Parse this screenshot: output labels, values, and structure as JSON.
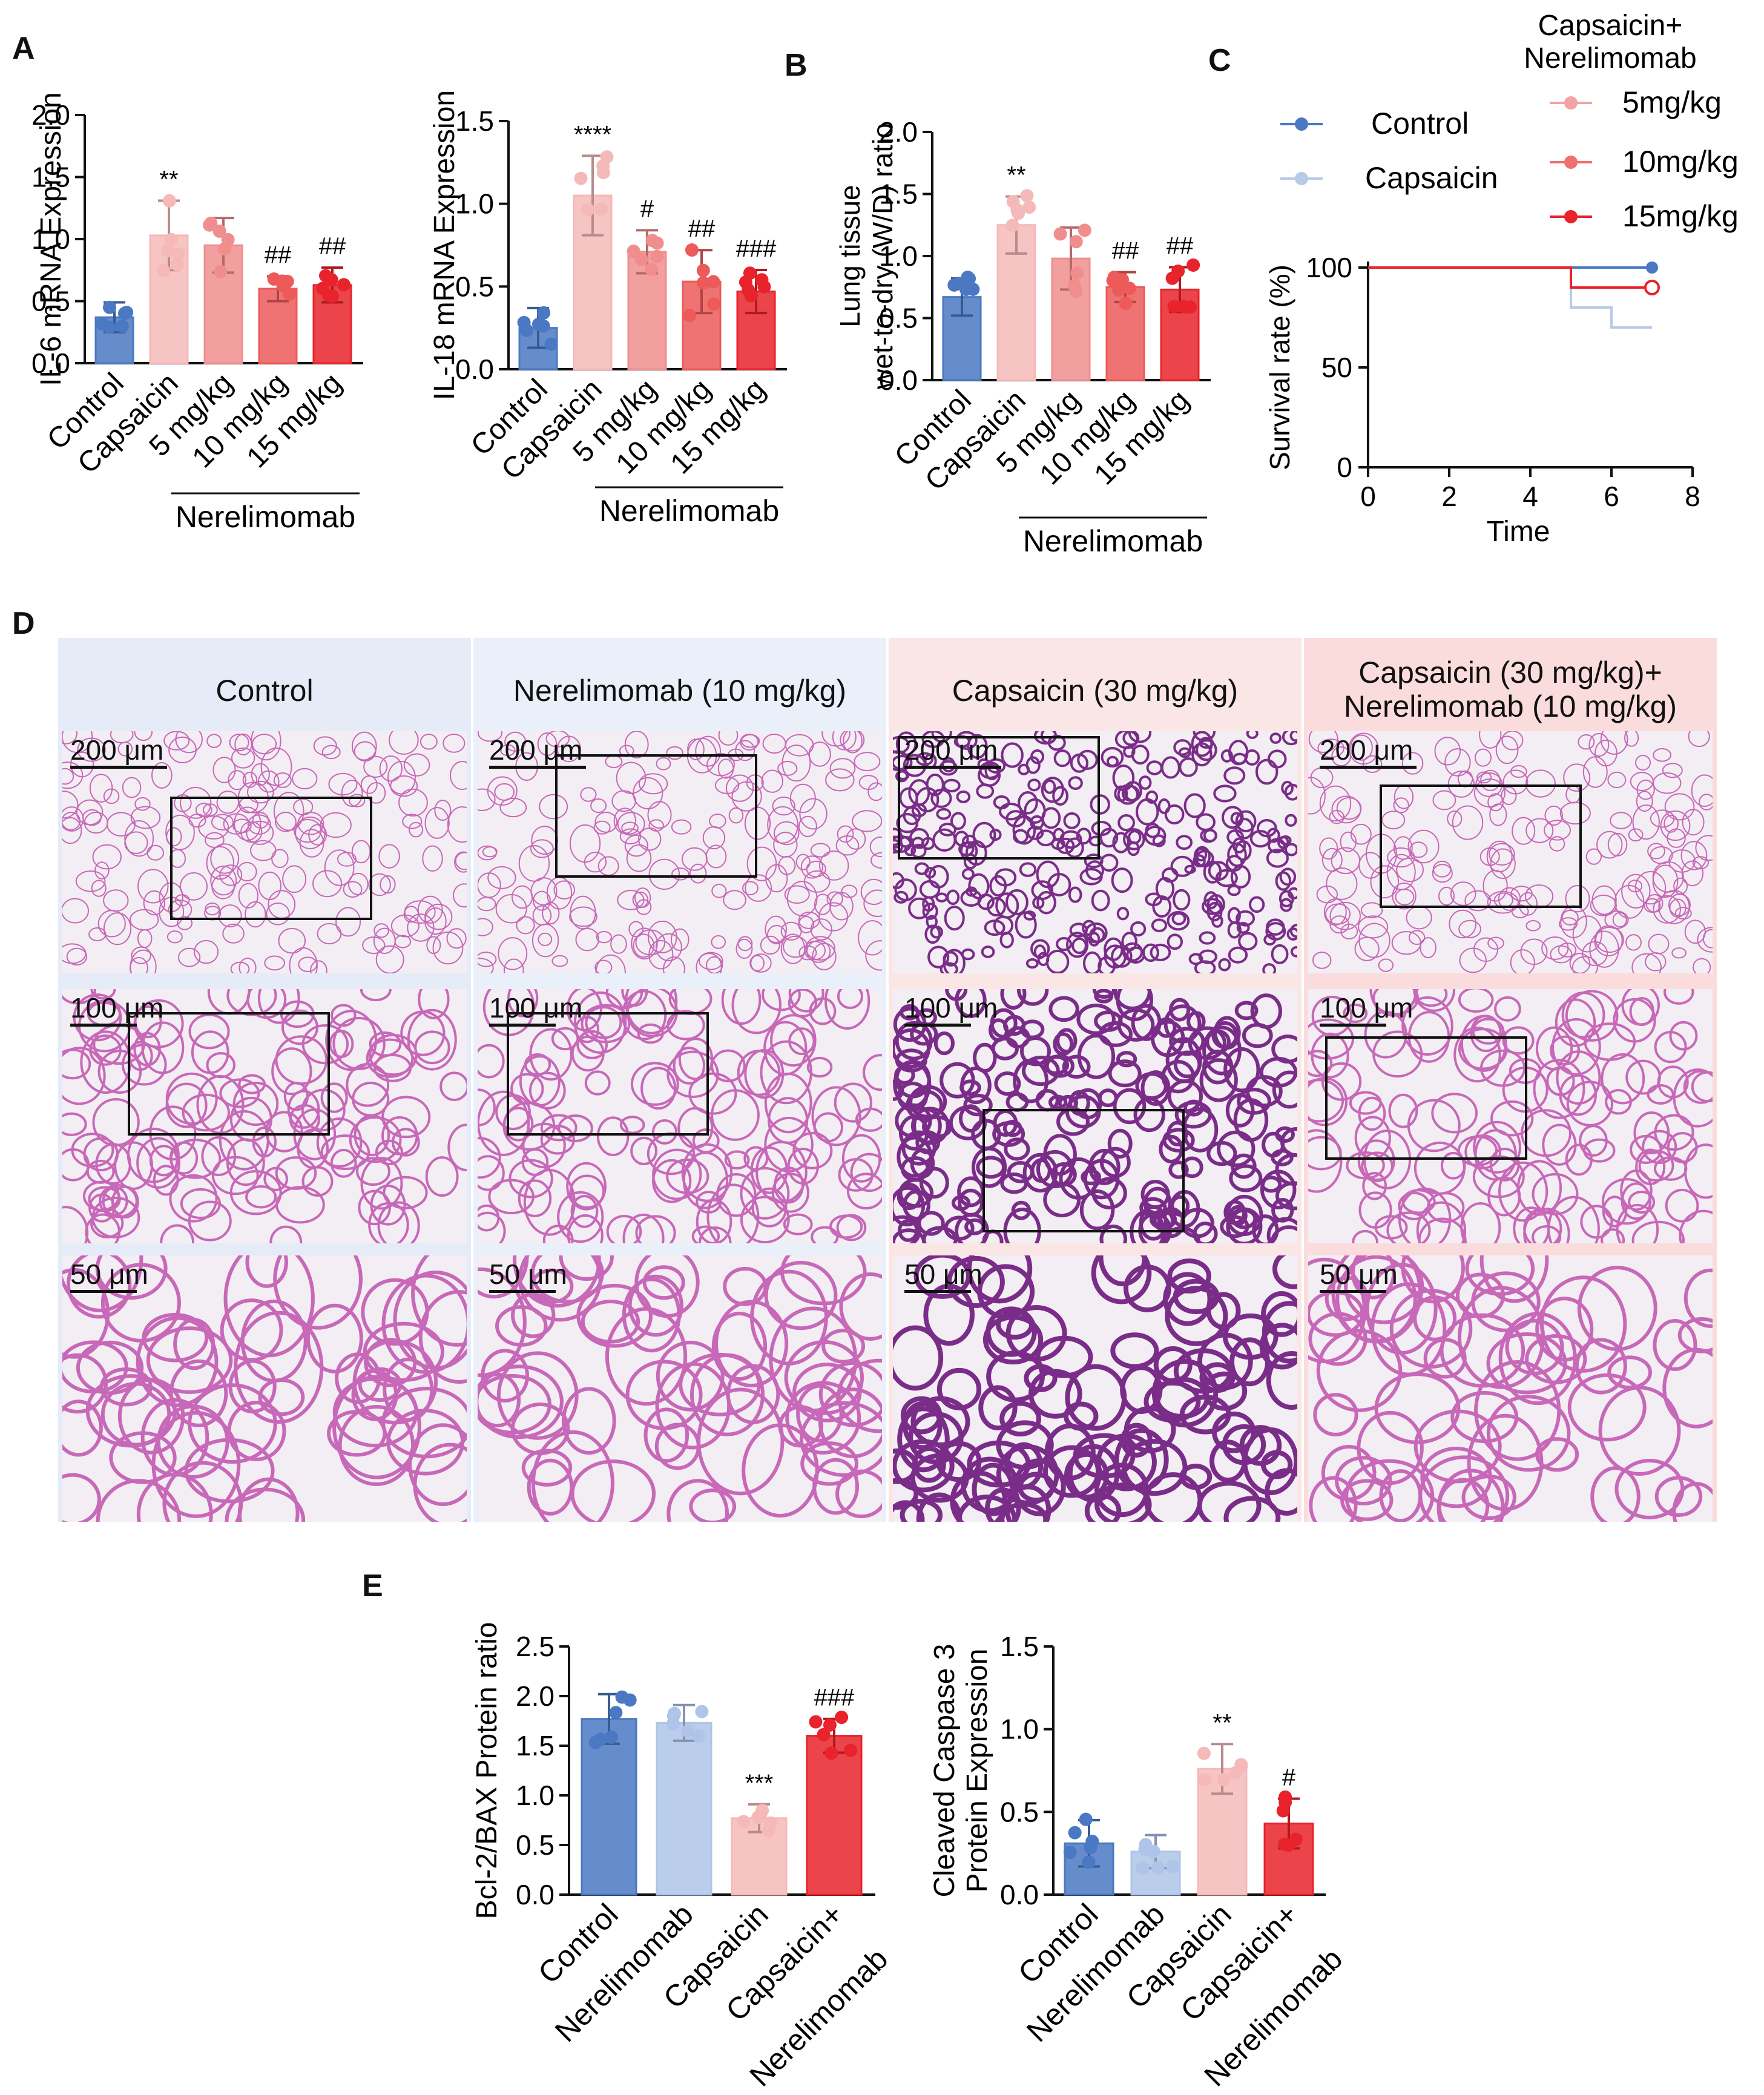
{
  "panel_letters": {
    "A": "A",
    "B": "B",
    "C": "C",
    "D": "D",
    "E": "E"
  },
  "colors": {
    "control": "#4a78c2",
    "capsaicin": "#f6b9b9",
    "dose5": "#f08e8e",
    "dose10": "#ec5a5a",
    "dose15": "#e8232b",
    "nerelimomab_only": "#aec4e8",
    "bg_control": "#e6ecf7",
    "bg_nerel": "#eaf0fa",
    "bg_caps": "#fbe6e6",
    "bg_combo": "#fbdcdc",
    "tissue": "#c768b8",
    "tissue_dense": "#7a2d88"
  },
  "nerel_group_label": "Nerelimomab",
  "chart_data": [
    {
      "id": "il6",
      "type": "bar",
      "ylabel": "IL-6 mRNA Expression",
      "ylim": [
        0,
        2.0
      ],
      "yticks": [
        "0.0",
        "0.5",
        "1.0",
        "1.5",
        "2.0"
      ],
      "categories": [
        "Control",
        "Capsaicin",
        "5 mg/kg",
        "10 mg/kg",
        "15 mg/kg"
      ],
      "values": [
        0.37,
        1.03,
        0.95,
        0.6,
        0.63
      ],
      "errors": [
        0.12,
        0.28,
        0.22,
        0.1,
        0.14
      ],
      "annotations": [
        "",
        "**",
        "",
        "##",
        "##"
      ],
      "group_label": "Nerelimomab"
    },
    {
      "id": "il18",
      "type": "bar",
      "ylabel": "IL-18 mRNA Expression",
      "ylim": [
        0,
        1.5
      ],
      "yticks": [
        "0.0",
        "0.5",
        "1.0",
        "1.5"
      ],
      "categories": [
        "Control",
        "Capsaicin",
        "5 mg/kg",
        "10 mg/kg",
        "15 mg/kg"
      ],
      "values": [
        0.25,
        1.05,
        0.71,
        0.53,
        0.47
      ],
      "errors": [
        0.12,
        0.24,
        0.13,
        0.19,
        0.13
      ],
      "annotations": [
        "",
        "****",
        "#",
        "##",
        "###"
      ],
      "group_label": "Nerelimomab"
    },
    {
      "id": "wd",
      "type": "bar",
      "ylabel": "Lung tissue wet-to-dry (W/D) ratio",
      "ylabel_lines": [
        "Lung tissue",
        "wet-to-dry (W/D) ratio"
      ],
      "ylim": [
        0,
        2.0
      ],
      "yticks": [
        "0.0",
        "0.5",
        "1.0",
        "1.5",
        "2.0"
      ],
      "categories": [
        "Control",
        "Capsaicin",
        "5 mg/kg",
        "10 mg/kg",
        "15 mg/kg"
      ],
      "values": [
        0.67,
        1.25,
        0.98,
        0.75,
        0.73
      ],
      "errors": [
        0.15,
        0.23,
        0.25,
        0.12,
        0.18
      ],
      "annotations": [
        "",
        "**",
        "",
        "##",
        "##"
      ],
      "group_label": "Nerelimomab"
    },
    {
      "id": "survival",
      "type": "line",
      "ylabel": "Survival rate (%)",
      "xlabel": "Time",
      "xlim": [
        0,
        8
      ],
      "ylim": [
        0,
        100
      ],
      "xticks": [
        "0",
        "2",
        "4",
        "6",
        "8"
      ],
      "yticks": [
        "0",
        "50",
        "100"
      ],
      "legend_title_lines": [
        "Capsaicin+",
        "Nerelimomab"
      ],
      "series": [
        {
          "name": "Control",
          "points": [
            [
              0,
              100
            ],
            [
              7,
              100
            ]
          ]
        },
        {
          "name": "Capsaicin",
          "points": [
            [
              0,
              100
            ],
            [
              5,
              100
            ],
            [
              5,
              80
            ],
            [
              6,
              80
            ],
            [
              6,
              70
            ],
            [
              7,
              70
            ]
          ]
        },
        {
          "name": "5mg/kg",
          "points": [
            [
              0,
              100
            ],
            [
              5,
              100
            ],
            [
              5,
              90
            ],
            [
              7,
              90
            ]
          ]
        },
        {
          "name": "10mg/kg",
          "points": [
            [
              0,
              100
            ],
            [
              5,
              100
            ],
            [
              5,
              90
            ],
            [
              7,
              90
            ]
          ]
        },
        {
          "name": "15mg/kg",
          "points": [
            [
              0,
              100
            ],
            [
              5,
              100
            ],
            [
              5,
              90
            ],
            [
              7,
              90
            ]
          ]
        }
      ]
    },
    {
      "id": "bcl2",
      "type": "bar",
      "ylabel": "Bcl-2/BAX Protein ratio",
      "ylim": [
        0,
        2.5
      ],
      "yticks": [
        "0.0",
        "0.5",
        "1.0",
        "1.5",
        "2.0",
        "2.5"
      ],
      "categories": [
        "Control",
        "Nerelimomab",
        "Capsaicin",
        "Capsaicin+ Nerelimomab"
      ],
      "category_lines": [
        [
          "Control"
        ],
        [
          "Nerelimomab"
        ],
        [
          "Capsaicin"
        ],
        [
          "Capsaicin+",
          "Nerelimomab"
        ]
      ],
      "values": [
        1.77,
        1.73,
        0.77,
        1.6
      ],
      "errors": [
        0.25,
        0.18,
        0.14,
        0.17
      ],
      "annotations": [
        "",
        "",
        "***",
        "###"
      ]
    },
    {
      "id": "casp3",
      "type": "bar",
      "ylabel": "Cleaved Caspase 3 Protein Expression",
      "ylabel_lines": [
        "Cleaved Caspase 3",
        "Protein Expression"
      ],
      "ylim": [
        0,
        1.5
      ],
      "yticks": [
        "0.0",
        "0.5",
        "1.0",
        "1.5"
      ],
      "categories": [
        "Control",
        "Nerelimomab",
        "Capsaicin",
        "Capsaicin+ Nerelimomab"
      ],
      "category_lines": [
        [
          "Control"
        ],
        [
          "Nerelimomab"
        ],
        [
          "Capsaicin"
        ],
        [
          "Capsaicin+",
          "Nerelimomab"
        ]
      ],
      "values": [
        0.31,
        0.26,
        0.76,
        0.43
      ],
      "errors": [
        0.14,
        0.1,
        0.15,
        0.15
      ],
      "annotations": [
        "",
        "",
        "**",
        "#"
      ]
    }
  ],
  "histology": {
    "columns": [
      {
        "title": "Control"
      },
      {
        "title": "Nerelimomab (10 mg/kg)"
      },
      {
        "title": "Capsaicin (30 mg/kg)"
      },
      {
        "title_lines": [
          "Capsaicin (30 mg/kg)+",
          "Nerelimomab (10 mg/kg)"
        ]
      }
    ],
    "scale_labels": [
      "200 μm",
      "100 μm",
      "50 μm"
    ]
  }
}
